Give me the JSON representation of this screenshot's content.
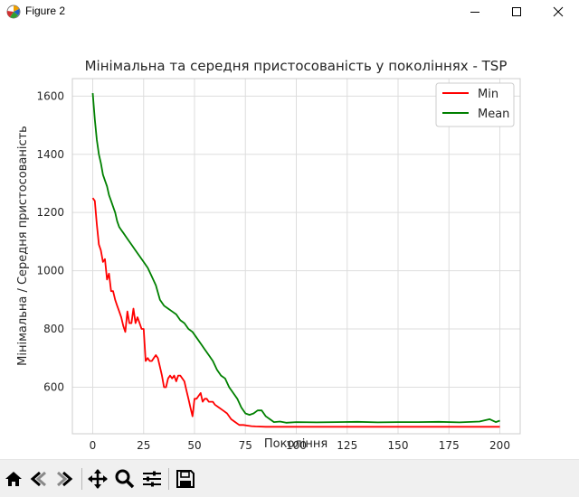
{
  "window": {
    "title": "Figure 2",
    "controls": {
      "minimize_icon": "minimize-icon",
      "maximize_icon": "maximize-icon",
      "close_icon": "close-icon"
    }
  },
  "toolbar": {
    "tools": [
      "home-icon",
      "back-icon",
      "forward-icon",
      "pan-icon",
      "zoom-icon",
      "configure-subplots-icon",
      "save-icon"
    ]
  },
  "chart_data": {
    "type": "line",
    "title": "Мінімальна та середня пристосованість у поколіннях - TSP",
    "xlabel": "Покоління",
    "ylabel": "Мінімальна / Середня пристосованість",
    "xlim": [
      -10,
      210
    ],
    "ylim": [
      440,
      1660
    ],
    "xticks": [
      0,
      25,
      50,
      75,
      100,
      125,
      150,
      175,
      200
    ],
    "yticks": [
      600,
      800,
      1000,
      1200,
      1400,
      1600
    ],
    "grid": true,
    "legend": "top-right",
    "series": [
      {
        "name": "Min",
        "color": "#ff0000",
        "x": [
          0,
          1,
          2,
          3,
          4,
          5,
          6,
          7,
          8,
          9,
          10,
          11,
          12,
          13,
          14,
          15,
          16,
          17,
          18,
          19,
          20,
          21,
          22,
          23,
          24,
          25,
          26,
          27,
          28,
          29,
          30,
          31,
          32,
          33,
          34,
          35,
          36,
          37,
          38,
          39,
          40,
          41,
          42,
          43,
          44,
          45,
          46,
          47,
          48,
          49,
          50,
          51,
          52,
          53,
          54,
          55,
          56,
          57,
          58,
          59,
          60,
          62,
          64,
          66,
          68,
          70,
          72,
          74,
          76,
          78,
          80,
          85,
          90,
          100,
          120,
          140,
          160,
          180,
          200
        ],
        "values": [
          1250,
          1240,
          1160,
          1090,
          1070,
          1030,
          1040,
          970,
          990,
          930,
          930,
          900,
          880,
          860,
          840,
          810,
          790,
          860,
          820,
          820,
          870,
          820,
          840,
          820,
          800,
          800,
          690,
          700,
          690,
          690,
          700,
          710,
          700,
          670,
          640,
          600,
          600,
          630,
          640,
          630,
          640,
          620,
          640,
          640,
          630,
          620,
          590,
          560,
          530,
          500,
          560,
          560,
          570,
          580,
          550,
          560,
          560,
          550,
          550,
          550,
          540,
          530,
          520,
          510,
          490,
          480,
          470,
          470,
          468,
          466,
          465,
          464,
          464,
          464,
          464,
          464,
          464,
          464,
          464
        ]
      },
      {
        "name": "Mean",
        "color": "#008000",
        "x": [
          0,
          1,
          2,
          3,
          4,
          5,
          6,
          7,
          8,
          9,
          10,
          11,
          12,
          13,
          14,
          15,
          17,
          19,
          21,
          23,
          25,
          27,
          29,
          31,
          33,
          35,
          37,
          39,
          41,
          43,
          45,
          47,
          49,
          51,
          53,
          55,
          57,
          59,
          61,
          63,
          65,
          67,
          69,
          71,
          73,
          75,
          77,
          79,
          81,
          83,
          85,
          87,
          89,
          92,
          95,
          100,
          110,
          120,
          130,
          140,
          150,
          160,
          170,
          180,
          190,
          195,
          198,
          200
        ],
        "values": [
          1610,
          1520,
          1450,
          1400,
          1370,
          1330,
          1310,
          1290,
          1260,
          1240,
          1220,
          1200,
          1170,
          1150,
          1140,
          1130,
          1110,
          1090,
          1070,
          1050,
          1030,
          1010,
          980,
          950,
          900,
          880,
          870,
          860,
          850,
          830,
          820,
          800,
          790,
          770,
          750,
          730,
          710,
          690,
          660,
          640,
          630,
          600,
          580,
          560,
          530,
          510,
          505,
          510,
          520,
          520,
          500,
          490,
          480,
          482,
          478,
          480,
          479,
          480,
          481,
          479,
          480,
          480,
          481,
          479,
          482,
          490,
          480,
          485
        ]
      }
    ]
  }
}
